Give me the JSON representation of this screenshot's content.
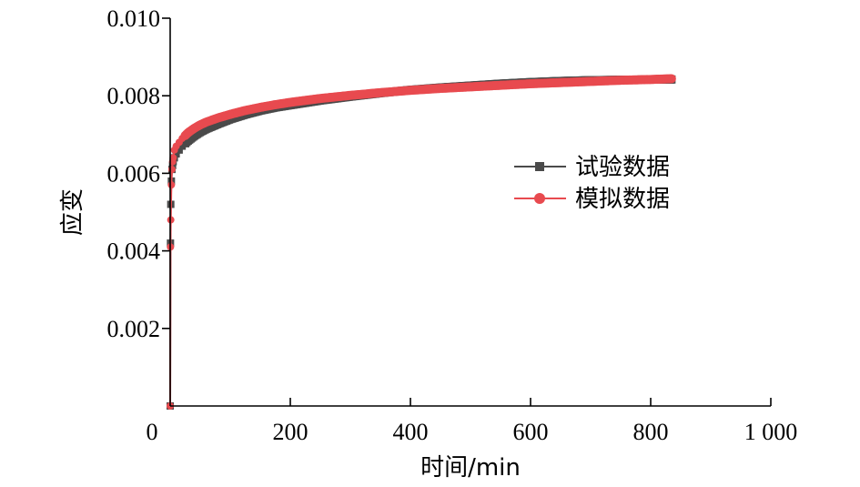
{
  "chart_data": {
    "type": "scatter",
    "title": "",
    "xlabel": "时间/min",
    "ylabel": "应变",
    "xlim": [
      0,
      1000
    ],
    "ylim": [
      0,
      0.01
    ],
    "x_ticks": [
      0,
      200,
      400,
      600,
      800,
      1000
    ],
    "x_tick_labels": [
      "0",
      "200",
      "400",
      "600",
      "800",
      "1 000"
    ],
    "y_ticks": [
      0.002,
      0.004,
      0.006,
      0.008,
      0.01
    ],
    "y_tick_labels": [
      "0.002",
      "0.004",
      "0.006",
      "0.008",
      "0.010"
    ],
    "grid": false,
    "legend_position": "right-middle",
    "series": [
      {
        "name": "试验数据",
        "marker": "square",
        "color": "#4a4a4a",
        "x": [
          0,
          0.5,
          1,
          2,
          3,
          4,
          5,
          7,
          10,
          15,
          20,
          30,
          40,
          50,
          60,
          80,
          100,
          125,
          150,
          175,
          200,
          250,
          300,
          350,
          400,
          450,
          500,
          550,
          600,
          650,
          700,
          750,
          800,
          835
        ],
        "y": [
          0,
          0.0042,
          0.0052,
          0.0058,
          0.0061,
          0.0062,
          0.0063,
          0.0064,
          0.0065,
          0.0066,
          0.0067,
          0.00685,
          0.00697,
          0.00707,
          0.00715,
          0.00728,
          0.0074,
          0.00752,
          0.00762,
          0.0077,
          0.00776,
          0.00788,
          0.00798,
          0.00807,
          0.00815,
          0.00821,
          0.00826,
          0.00831,
          0.00835,
          0.00838,
          0.0084,
          0.00841,
          0.00842,
          0.00842
        ]
      },
      {
        "name": "模拟数据",
        "marker": "circle",
        "color": "#e84a4f",
        "x": [
          0,
          0.5,
          1,
          2,
          3,
          4,
          5,
          7,
          10,
          15,
          20,
          30,
          40,
          50,
          60,
          80,
          100,
          125,
          150,
          175,
          200,
          250,
          300,
          350,
          400,
          450,
          500,
          550,
          600,
          650,
          700,
          750,
          800,
          835
        ],
        "y": [
          0,
          0.0041,
          0.0048,
          0.0057,
          0.0061,
          0.0063,
          0.0064,
          0.0066,
          0.0067,
          0.0068,
          0.0069,
          0.00705,
          0.00716,
          0.00725,
          0.00732,
          0.00743,
          0.00752,
          0.00762,
          0.0077,
          0.00777,
          0.00783,
          0.00793,
          0.00801,
          0.00808,
          0.00814,
          0.00819,
          0.00823,
          0.00827,
          0.00831,
          0.00834,
          0.00837,
          0.0084,
          0.00842,
          0.00844
        ]
      }
    ]
  }
}
